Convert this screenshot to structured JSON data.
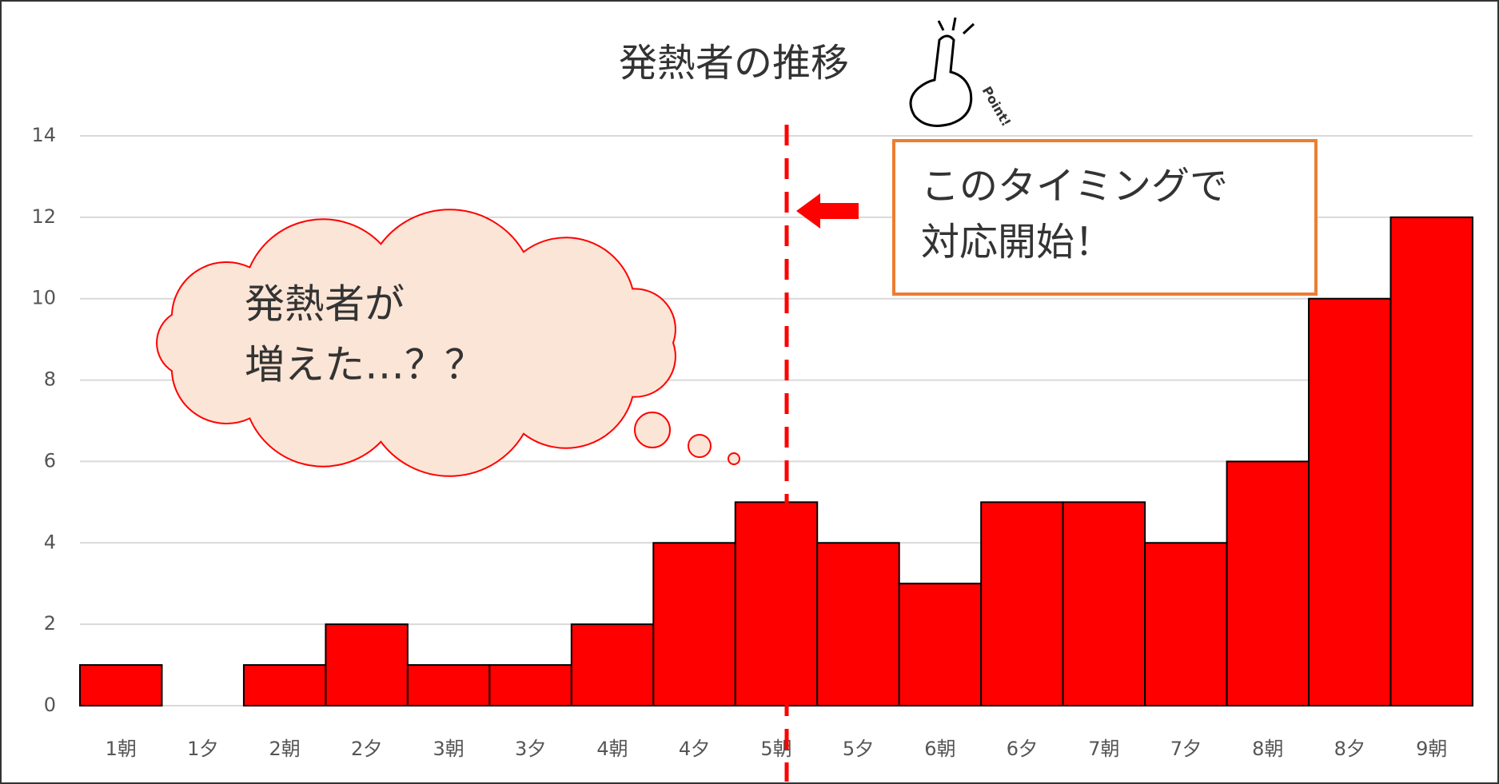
{
  "chart_data": {
    "type": "bar",
    "title": "発熱者の推移",
    "categories": [
      "1朝",
      "1夕",
      "2朝",
      "2夕",
      "3朝",
      "3夕",
      "4朝",
      "4夕",
      "5朝",
      "5夕",
      "6朝",
      "6夕",
      "7朝",
      "7夕",
      "8朝",
      "8夕",
      "9朝"
    ],
    "values": [
      1,
      0,
      1,
      2,
      1,
      1,
      2,
      4,
      5,
      4,
      3,
      5,
      5,
      4,
      6,
      10,
      12
    ],
    "color": "#ff0000",
    "ylim": [
      0,
      14
    ],
    "yticks": [
      0,
      2,
      4,
      6,
      8,
      10,
      12,
      14
    ],
    "grid": true,
    "annotations": {
      "box": [
        "このタイミングで",
        "対応開始！"
      ],
      "cloud": [
        "発熱者が",
        "増えた…？？"
      ],
      "icon": "Point!"
    }
  }
}
